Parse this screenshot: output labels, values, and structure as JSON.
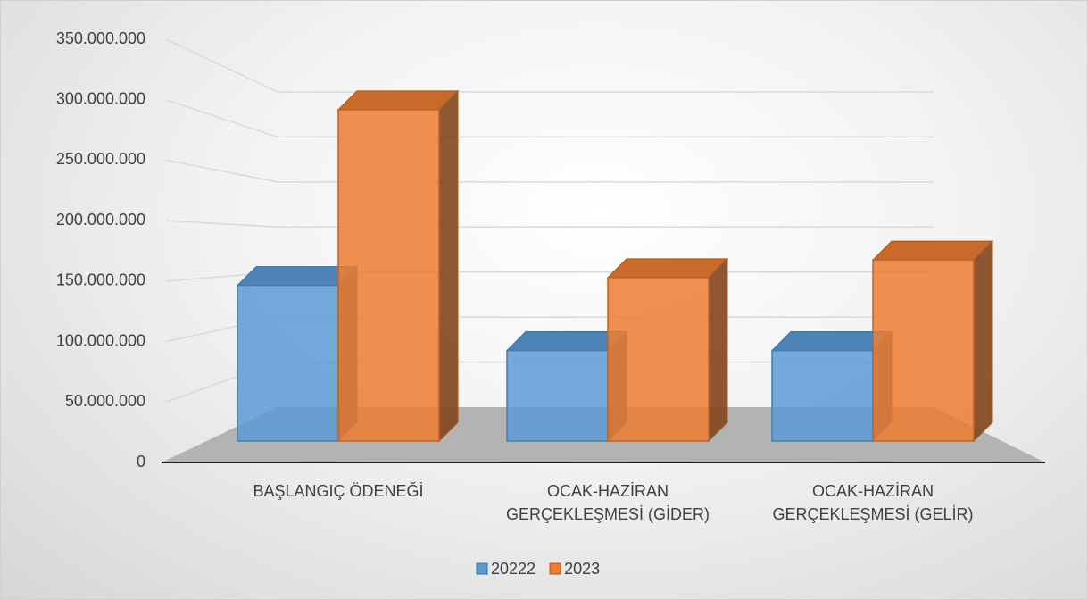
{
  "chart_data": {
    "type": "bar3d",
    "categories": [
      "BAŞLANGIÇ ÖDENEĞİ",
      "OCAK-HAZİRAN GERÇEKLEŞMESİ (GİDER)",
      "OCAK-HAZİRAN GERÇEKLEŞMESİ (GELİR)"
    ],
    "series": [
      {
        "name": "20222",
        "color": "#5b9bd5",
        "values": [
          141000000,
          82000000,
          82000000
        ]
      },
      {
        "name": "2023",
        "color": "#ed7d31",
        "values": [
          300000000,
          148000000,
          164000000
        ]
      }
    ],
    "ylim": [
      0,
      350000000
    ],
    "yticks": [
      0,
      {
        "value": 50000000,
        "label": "50.000.000"
      },
      {
        "value": 100000000,
        "label": "100.000.000"
      },
      {
        "value": 150000000,
        "label": "150.000.000"
      },
      {
        "value": 200000000,
        "label": "200.000.000"
      },
      {
        "value": 250000000,
        "label": "250.000.000"
      },
      {
        "value": 300000000,
        "label": "300.000.000"
      },
      {
        "value": 350000000,
        "label": "350.000.000"
      }
    ],
    "grid": true,
    "legend": "bottom"
  }
}
